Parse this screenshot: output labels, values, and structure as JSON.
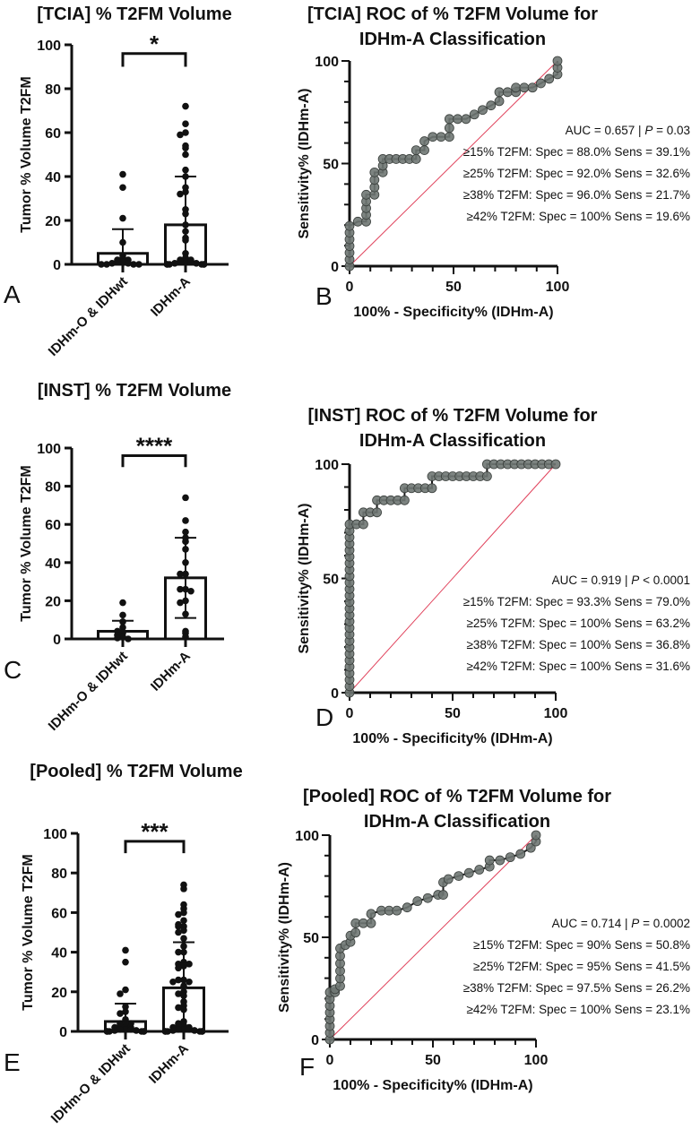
{
  "colors": {
    "axis": "#111111",
    "roc_marker": "#6f7773",
    "roc_line": "#1a1a1a",
    "reference_line": "#e0405a",
    "points": "#111111"
  },
  "chart_data": [
    {
      "type": "bar",
      "panel": "A",
      "title": "[TCIA] % T2FM Volume",
      "ylabel": "Tumor % Volume T2FM",
      "ylim": [
        0,
        100
      ],
      "yticks": [
        "0",
        "20",
        "40",
        "60",
        "80",
        "100"
      ],
      "categories": [
        "IDHm-O & IDHwt",
        "IDHm-A"
      ],
      "means": [
        5,
        18
      ],
      "error_upper": [
        16,
        40
      ],
      "error_lower": [
        0,
        0
      ],
      "points": [
        [
          41,
          35,
          21,
          10,
          4,
          3,
          2,
          2,
          1,
          1,
          0.5,
          0.5,
          0,
          0,
          0,
          0
        ],
        [
          72,
          64,
          60,
          59,
          54,
          53,
          50,
          43,
          40,
          35,
          33,
          32,
          25,
          23,
          18,
          15,
          12,
          11,
          5,
          3,
          2,
          2,
          1,
          1,
          1,
          0.5,
          0.5,
          0,
          0,
          0,
          0,
          0,
          0
        ]
      ],
      "significance": "*"
    },
    {
      "type": "line",
      "panel": "B",
      "title": [
        "[TCIA] ROC of % T2FM Volume for",
        "IDHm-A Classification"
      ],
      "xlabel": "100% - Specificity% (IDHm-A)",
      "ylabel": "Sensitivity% (IDHm-A)",
      "xlim": [
        0,
        100
      ],
      "ylim": [
        0,
        100
      ],
      "xticks": [
        "0",
        "50",
        "100"
      ],
      "yticks": [
        "0",
        "50",
        "100"
      ],
      "reference_line": "diagonal",
      "points": [
        [
          0,
          0
        ],
        [
          0,
          19.6
        ],
        [
          4,
          21.7
        ],
        [
          8,
          21.7
        ],
        [
          8,
          34.8
        ],
        [
          12,
          34.8
        ],
        [
          12,
          45.7
        ],
        [
          16,
          45.7
        ],
        [
          16,
          52.2
        ],
        [
          32,
          52.2
        ],
        [
          32,
          56.5
        ],
        [
          36,
          56.5
        ],
        [
          36,
          60.9
        ],
        [
          40,
          63
        ],
        [
          48,
          63
        ],
        [
          48,
          71.7
        ],
        [
          56,
          71.7
        ],
        [
          60,
          73.9
        ],
        [
          64,
          76.1
        ],
        [
          68,
          78.3
        ],
        [
          72,
          80.4
        ],
        [
          72,
          84.8
        ],
        [
          80,
          84.8
        ],
        [
          80,
          87
        ],
        [
          88,
          87
        ],
        [
          92,
          89.1
        ],
        [
          96,
          91.3
        ],
        [
          100,
          93.5
        ],
        [
          100,
          100
        ]
      ],
      "annotation": {
        "auc": [
          "AUC = 0.657 | ",
          "P",
          " = 0.03"
        ],
        "thresholds": [
          "≥15% T2FM: Spec = 88.0% Sens = 39.1%",
          "≥25% T2FM: Spec = 92.0% Sens = 32.6%",
          "≥38% T2FM: Spec = 96.0% Sens = 21.7%",
          "≥42% T2FM: Spec = 100% Sens = 19.6%"
        ]
      }
    },
    {
      "type": "bar",
      "panel": "C",
      "title": "[INST] % T2FM Volume",
      "ylabel": "Tumor % Volume T2FM",
      "ylim": [
        0,
        100
      ],
      "yticks": [
        "0",
        "20",
        "40",
        "60",
        "80",
        "100"
      ],
      "categories": [
        "IDHm-O & IDHwt",
        "IDHm-A"
      ],
      "means": [
        4,
        32
      ],
      "error_upper": [
        9.5,
        53
      ],
      "error_lower": [
        0,
        11
      ],
      "points": [
        [
          19,
          12.5,
          9,
          6,
          4,
          3,
          2,
          1,
          0.5,
          0
        ],
        [
          74,
          62,
          56,
          53,
          51,
          47,
          40,
          34,
          34,
          26,
          26,
          25,
          20,
          19,
          13,
          4,
          3,
          1
        ]
      ],
      "significance": "****"
    },
    {
      "type": "line",
      "panel": "D",
      "title": [
        "[INST] ROC of % T2FM Volume for",
        "IDHm-A Classification"
      ],
      "xlabel": "100% - Specificity% (IDHm-A)",
      "ylabel": "Sensitivity% (IDHm-A)",
      "xlim": [
        0,
        100
      ],
      "ylim": [
        0,
        100
      ],
      "xticks": [
        "0",
        "50",
        "100"
      ],
      "yticks": [
        "0",
        "50",
        "100"
      ],
      "reference_line": "diagonal",
      "points": [
        [
          0,
          0
        ],
        [
          0,
          73.7
        ],
        [
          6.7,
          73.7
        ],
        [
          6.7,
          78.9
        ],
        [
          13.3,
          78.9
        ],
        [
          13.3,
          84.2
        ],
        [
          26.7,
          84.2
        ],
        [
          26.7,
          89.5
        ],
        [
          40,
          89.5
        ],
        [
          40,
          94.7
        ],
        [
          66.7,
          94.7
        ],
        [
          66.7,
          100
        ],
        [
          100,
          100
        ]
      ],
      "annotation": {
        "auc": [
          "AUC = 0.919 | ",
          "P",
          " < 0.0001"
        ],
        "thresholds": [
          "≥15% T2FM: Spec = 93.3% Sens = 79.0%",
          "≥25% T2FM: Spec = 100% Sens = 63.2%",
          "≥38% T2FM: Spec = 100% Sens = 36.8%",
          "≥42% T2FM: Spec = 100% Sens = 31.6%"
        ]
      }
    },
    {
      "type": "bar",
      "panel": "E",
      "title": "[Pooled] % T2FM Volume",
      "ylabel": "Tumor % Volume T2FM",
      "ylim": [
        0,
        100
      ],
      "yticks": [
        "0",
        "20",
        "40",
        "60",
        "80",
        "100"
      ],
      "categories": [
        "IDHm-O & IDHwt",
        "IDHm-A"
      ],
      "means": [
        5,
        22
      ],
      "error_upper": [
        14,
        45
      ],
      "error_lower": [
        0,
        0
      ],
      "points": [
        [
          41,
          35,
          21,
          19,
          12.5,
          10,
          9,
          6,
          4,
          4,
          3,
          3,
          2,
          2,
          1,
          1,
          1,
          0.5,
          0.5,
          0,
          0,
          0,
          0,
          0,
          0
        ],
        [
          74,
          72,
          64,
          62,
          60,
          59,
          56,
          54,
          53,
          53,
          51,
          50,
          47,
          43,
          40,
          40,
          35,
          34,
          34,
          33,
          32,
          26,
          26,
          25,
          25,
          23,
          20,
          19,
          18,
          15,
          13,
          12,
          11,
          5,
          4,
          3,
          3,
          2,
          2,
          1,
          1,
          1,
          0.5,
          0.5,
          0,
          0,
          0,
          0,
          0,
          0
        ]
      ],
      "significance": "***"
    },
    {
      "type": "line",
      "panel": "F",
      "title": [
        "[Pooled] ROC of % T2FM Volume for",
        "IDHm-A Classification"
      ],
      "xlabel": "100% - Specificity% (IDHm-A)",
      "ylabel": "Sensitivity% (IDHm-A)",
      "xlim": [
        0,
        100
      ],
      "ylim": [
        0,
        100
      ],
      "xticks": [
        "0",
        "50",
        "100"
      ],
      "yticks": [
        "0",
        "50",
        "100"
      ],
      "reference_line": "diagonal",
      "points": [
        [
          0,
          0
        ],
        [
          0,
          23.1
        ],
        [
          2.5,
          23.1
        ],
        [
          2.5,
          24.6
        ],
        [
          5,
          26.2
        ],
        [
          5,
          44.6
        ],
        [
          7.5,
          46.2
        ],
        [
          10,
          47.7
        ],
        [
          10,
          50.8
        ],
        [
          12.5,
          52.3
        ],
        [
          12.5,
          56.9
        ],
        [
          20,
          56.9
        ],
        [
          20,
          61.5
        ],
        [
          25,
          63.1
        ],
        [
          32.5,
          63.1
        ],
        [
          37.5,
          64.6
        ],
        [
          42.5,
          67.7
        ],
        [
          47.5,
          69.2
        ],
        [
          52.5,
          70.8
        ],
        [
          55,
          70.8
        ],
        [
          55,
          76.9
        ],
        [
          57.5,
          78.5
        ],
        [
          62.5,
          80
        ],
        [
          67.5,
          81.5
        ],
        [
          72.5,
          83.1
        ],
        [
          77.5,
          84.6
        ],
        [
          77.5,
          87.7
        ],
        [
          82.5,
          87.7
        ],
        [
          87.5,
          89.2
        ],
        [
          92.5,
          90.8
        ],
        [
          97.5,
          93.8
        ],
        [
          100,
          96.9
        ],
        [
          100,
          100
        ]
      ],
      "annotation": {
        "auc": [
          "AUC = 0.714 | ",
          "P",
          " = 0.0002"
        ],
        "thresholds": [
          "≥15% T2FM: Spec = 90% Sens = 50.8%",
          "≥25% T2FM: Spec = 95% Sens = 41.5%",
          "≥38% T2FM: Spec = 97.5% Sens = 26.2%",
          "≥42% T2FM: Spec = 100% Sens = 23.1%"
        ]
      }
    }
  ]
}
